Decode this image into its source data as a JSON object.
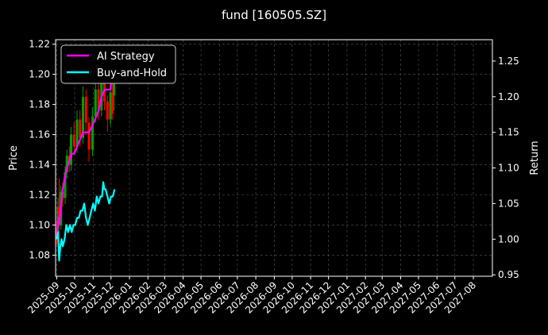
{
  "chart_data": {
    "type": "line",
    "title": "fund [160505.SZ]",
    "ylabel": "Price",
    "y2label": "Return",
    "grid": true,
    "legend_position": "top-left",
    "colors": {
      "background": "#000000",
      "ai_strategy": "#ff00ff",
      "buy_and_hold": "#00ffff",
      "candle_up": "#00a000",
      "candle_down": "#ff0000",
      "grid": "#555555",
      "axis": "#ffffff"
    },
    "x_ticks": [
      "2025-09",
      "2025-10",
      "2025-11",
      "2025-12",
      "2026-01",
      "2026-02",
      "2026-03",
      "2026-04",
      "2026-05",
      "2026-06",
      "2026-07",
      "2026-08",
      "2026-09",
      "2026-10",
      "2026-11",
      "2026-12",
      "2027-01",
      "2027-02",
      "2027-03",
      "2027-04",
      "2027-05",
      "2027-06",
      "2027-07",
      "2027-08"
    ],
    "xlim": [
      "2025-08-30",
      "2027-09-02"
    ],
    "ylim": [
      1.066,
      1.223
    ],
    "y_ticks": [
      1.08,
      1.1,
      1.12,
      1.14,
      1.16,
      1.18,
      1.2,
      1.22
    ],
    "y_tick_labels": [
      "1.08",
      "1.10",
      "1.12",
      "1.14",
      "1.16",
      "1.18",
      "1.20",
      "1.22"
    ],
    "y2lim": [
      0.948,
      1.28
    ],
    "y2_ticks": [
      0.95,
      1.0,
      1.05,
      1.1,
      1.15,
      1.2,
      1.25
    ],
    "y2_tick_labels": [
      "0.95",
      "1.00",
      "1.05",
      "1.10",
      "1.15",
      "1.20",
      "1.25"
    ],
    "series": [
      {
        "name": "AI Strategy",
        "axis": "right",
        "x": [
          "2025-09-01",
          "2025-09-03",
          "2025-09-05",
          "2025-09-08",
          "2025-09-11",
          "2025-09-15",
          "2025-09-18",
          "2025-09-22",
          "2025-09-25",
          "2025-09-30",
          "2025-10-05",
          "2025-10-10",
          "2025-10-15",
          "2025-10-20",
          "2025-10-25",
          "2025-10-31",
          "2025-11-05",
          "2025-11-10",
          "2025-11-15",
          "2025-11-20",
          "2025-11-25",
          "2025-11-30",
          "2025-12-03",
          "2025-12-06"
        ],
        "values": [
          1.0,
          1.03,
          1.02,
          1.05,
          1.07,
          1.09,
          1.1,
          1.11,
          1.12,
          1.12,
          1.13,
          1.14,
          1.15,
          1.15,
          1.15,
          1.16,
          1.17,
          1.18,
          1.2,
          1.21,
          1.21,
          1.21,
          1.24,
          1.27
        ]
      },
      {
        "name": "Buy-and-Hold",
        "axis": "right",
        "x": [
          "2025-09-01",
          "2025-09-03",
          "2025-09-05",
          "2025-09-07",
          "2025-09-09",
          "2025-09-11",
          "2025-09-14",
          "2025-09-17",
          "2025-09-20",
          "2025-09-23",
          "2025-09-26",
          "2025-09-29",
          "2025-10-02",
          "2025-10-05",
          "2025-10-08",
          "2025-10-11",
          "2025-10-14",
          "2025-10-17",
          "2025-10-20",
          "2025-10-23",
          "2025-10-26",
          "2025-10-29",
          "2025-11-01",
          "2025-11-04",
          "2025-11-07",
          "2025-11-10",
          "2025-11-13",
          "2025-11-16",
          "2025-11-18",
          "2025-11-20",
          "2025-11-22",
          "2025-11-25",
          "2025-11-28",
          "2025-12-01",
          "2025-12-04",
          "2025-12-07"
        ],
        "values": [
          1.0,
          1.01,
          0.97,
          0.99,
          1.0,
          0.99,
          1.0,
          1.02,
          1.01,
          1.02,
          1.01,
          1.02,
          1.02,
          1.03,
          1.03,
          1.04,
          1.04,
          1.05,
          1.03,
          1.02,
          1.03,
          1.04,
          1.05,
          1.04,
          1.06,
          1.05,
          1.06,
          1.06,
          1.08,
          1.07,
          1.07,
          1.06,
          1.05,
          1.06,
          1.06,
          1.07
        ]
      }
    ],
    "candles": [
      {
        "x": "2025-09-01",
        "open": 1.098,
        "close": 1.092,
        "high": 1.103,
        "low": 1.087
      },
      {
        "x": "2025-09-03",
        "open": 1.093,
        "close": 1.112,
        "high": 1.118,
        "low": 1.09
      },
      {
        "x": "2025-09-05",
        "open": 1.112,
        "close": 1.102,
        "high": 1.131,
        "low": 1.098
      },
      {
        "x": "2025-09-08",
        "open": 1.1,
        "close": 1.122,
        "high": 1.126,
        "low": 1.097
      },
      {
        "x": "2025-09-11",
        "open": 1.122,
        "close": 1.118,
        "high": 1.128,
        "low": 1.112
      },
      {
        "x": "2025-09-15",
        "open": 1.118,
        "close": 1.135,
        "high": 1.139,
        "low": 1.114
      },
      {
        "x": "2025-09-18",
        "open": 1.135,
        "close": 1.146,
        "high": 1.15,
        "low": 1.131
      },
      {
        "x": "2025-09-22",
        "open": 1.146,
        "close": 1.14,
        "high": 1.152,
        "low": 1.135
      },
      {
        "x": "2025-09-25",
        "open": 1.14,
        "close": 1.16,
        "high": 1.165,
        "low": 1.136
      },
      {
        "x": "2025-09-30",
        "open": 1.16,
        "close": 1.152,
        "high": 1.168,
        "low": 1.148
      },
      {
        "x": "2025-10-05",
        "open": 1.152,
        "close": 1.17,
        "high": 1.176,
        "low": 1.148
      },
      {
        "x": "2025-10-10",
        "open": 1.17,
        "close": 1.158,
        "high": 1.176,
        "low": 1.152
      },
      {
        "x": "2025-10-15",
        "open": 1.158,
        "close": 1.185,
        "high": 1.192,
        "low": 1.154
      },
      {
        "x": "2025-10-20",
        "open": 1.185,
        "close": 1.168,
        "high": 1.19,
        "low": 1.16
      },
      {
        "x": "2025-10-25",
        "open": 1.168,
        "close": 1.15,
        "high": 1.172,
        "low": 1.142
      },
      {
        "x": "2025-10-31",
        "open": 1.15,
        "close": 1.172,
        "high": 1.178,
        "low": 1.146
      },
      {
        "x": "2025-11-05",
        "open": 1.172,
        "close": 1.19,
        "high": 1.198,
        "low": 1.168
      },
      {
        "x": "2025-11-10",
        "open": 1.19,
        "close": 1.176,
        "high": 1.196,
        "low": 1.17
      },
      {
        "x": "2025-11-15",
        "open": 1.176,
        "close": 1.195,
        "high": 1.202,
        "low": 1.172
      },
      {
        "x": "2025-11-20",
        "open": 1.195,
        "close": 1.182,
        "high": 1.2,
        "low": 1.176
      },
      {
        "x": "2025-11-25",
        "open": 1.182,
        "close": 1.17,
        "high": 1.186,
        "low": 1.162
      },
      {
        "x": "2025-11-30",
        "open": 1.17,
        "close": 1.188,
        "high": 1.194,
        "low": 1.166
      },
      {
        "x": "2025-12-03",
        "open": 1.188,
        "close": 1.174,
        "high": 1.194,
        "low": 1.17
      },
      {
        "x": "2025-12-06",
        "open": 1.186,
        "close": 1.2,
        "high": 1.205,
        "low": 1.176
      }
    ],
    "legend": [
      {
        "label": "AI Strategy",
        "color": "#ff00ff"
      },
      {
        "label": "Buy-and-Hold",
        "color": "#00ffff"
      }
    ]
  }
}
